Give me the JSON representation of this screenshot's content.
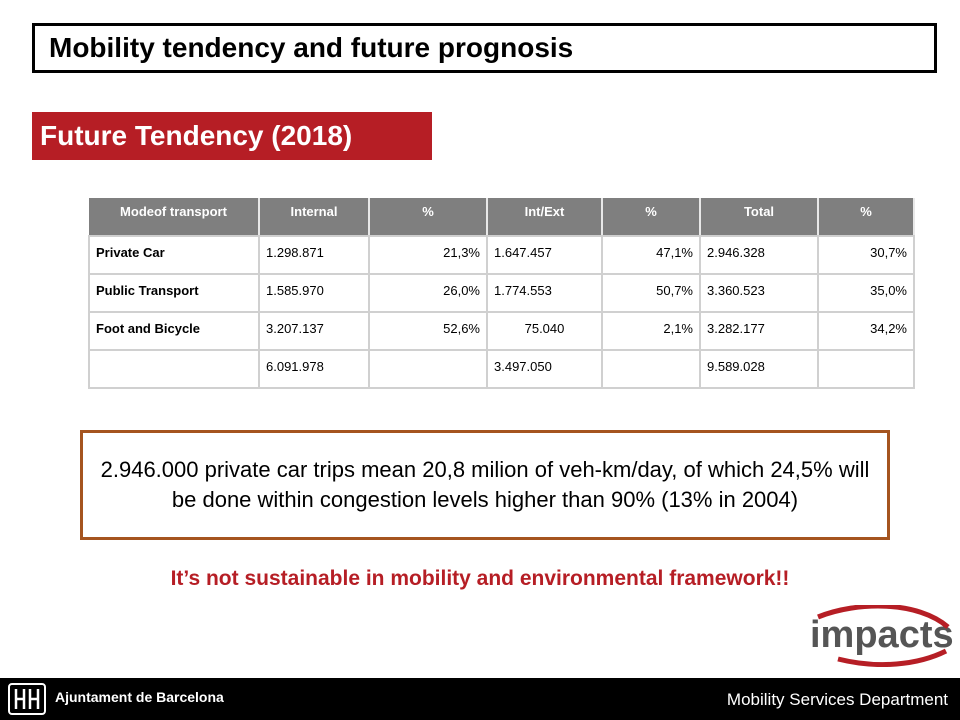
{
  "slide": {
    "title": "Mobility tendency and future prognosis",
    "subtitle": "Future Tendency (2018)"
  },
  "table": {
    "headers": [
      "Modeof  transport",
      "Internal",
      "%",
      "Int/Ext",
      "%",
      "Total",
      "%"
    ],
    "rows": [
      [
        "Private  Car",
        "1.298.871",
        "21,3%",
        "1.647.457",
        "47,1%",
        "2.946.328",
        "30,7%"
      ],
      [
        "Public  Transport",
        "1.585.970",
        "26,0%",
        "1.774.553",
        "50,7%",
        "3.360.523",
        "35,0%"
      ],
      [
        "Foot  and  Bicycle",
        "3.207.137",
        "52,6%",
        "75.040",
        "2,1%",
        "3.282.177",
        "34,2%"
      ],
      [
        "",
        "6.091.978",
        "",
        "3.497.050",
        "",
        "9.589.028",
        ""
      ]
    ]
  },
  "note": "2.946.000 private car trips mean 20,8 milion of veh-km/day, of which 24,5% will be done within congestion levels higher than 90% (13% in 2004)",
  "warning": "It’s not sustainable in mobility and environmental framework!!",
  "logo_text": "impacts",
  "footer": {
    "organization": "Ajuntament de Barcelona",
    "department": "Mobility Services Department"
  },
  "colors": {
    "accent_red": "#b61e25",
    "note_border": "#a5541f",
    "header_gray": "#7f7f7f"
  }
}
